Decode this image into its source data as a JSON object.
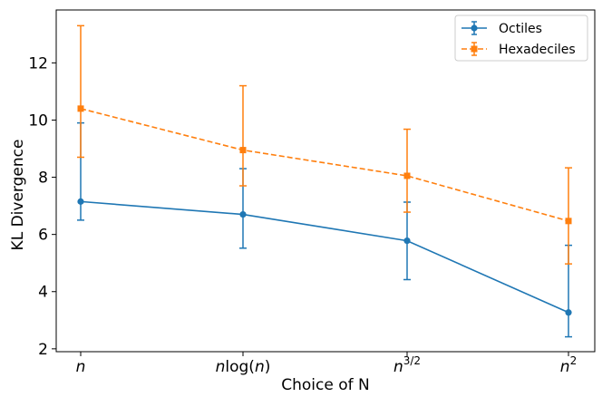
{
  "chart_data": {
    "type": "line",
    "categories": [
      "n",
      "nlog(n)",
      "n^{3/2}",
      "n^2"
    ],
    "xlabel": "Choice of N",
    "ylabel": "KL Divergence",
    "ylim": [
      1.9,
      13.85
    ],
    "yticks": [
      2,
      4,
      6,
      8,
      10,
      12
    ],
    "grid": false,
    "legend_position": "top-right",
    "series": [
      {
        "name": "Octiles",
        "color": "#1f77b4",
        "line_style": "solid",
        "marker": "circle",
        "values": [
          7.15,
          6.7,
          5.78,
          3.27
        ],
        "err_low": [
          6.5,
          5.52,
          4.42,
          2.42
        ],
        "err_high": [
          9.9,
          8.3,
          7.13,
          5.62
        ]
      },
      {
        "name": "Hexadeciles",
        "color": "#ff7f0e",
        "line_style": "dashed",
        "marker": "square",
        "values": [
          10.4,
          8.95,
          8.05,
          6.47
        ],
        "err_low": [
          8.7,
          7.7,
          6.78,
          4.97
        ],
        "err_high": [
          13.3,
          11.2,
          9.68,
          8.33
        ]
      }
    ]
  }
}
